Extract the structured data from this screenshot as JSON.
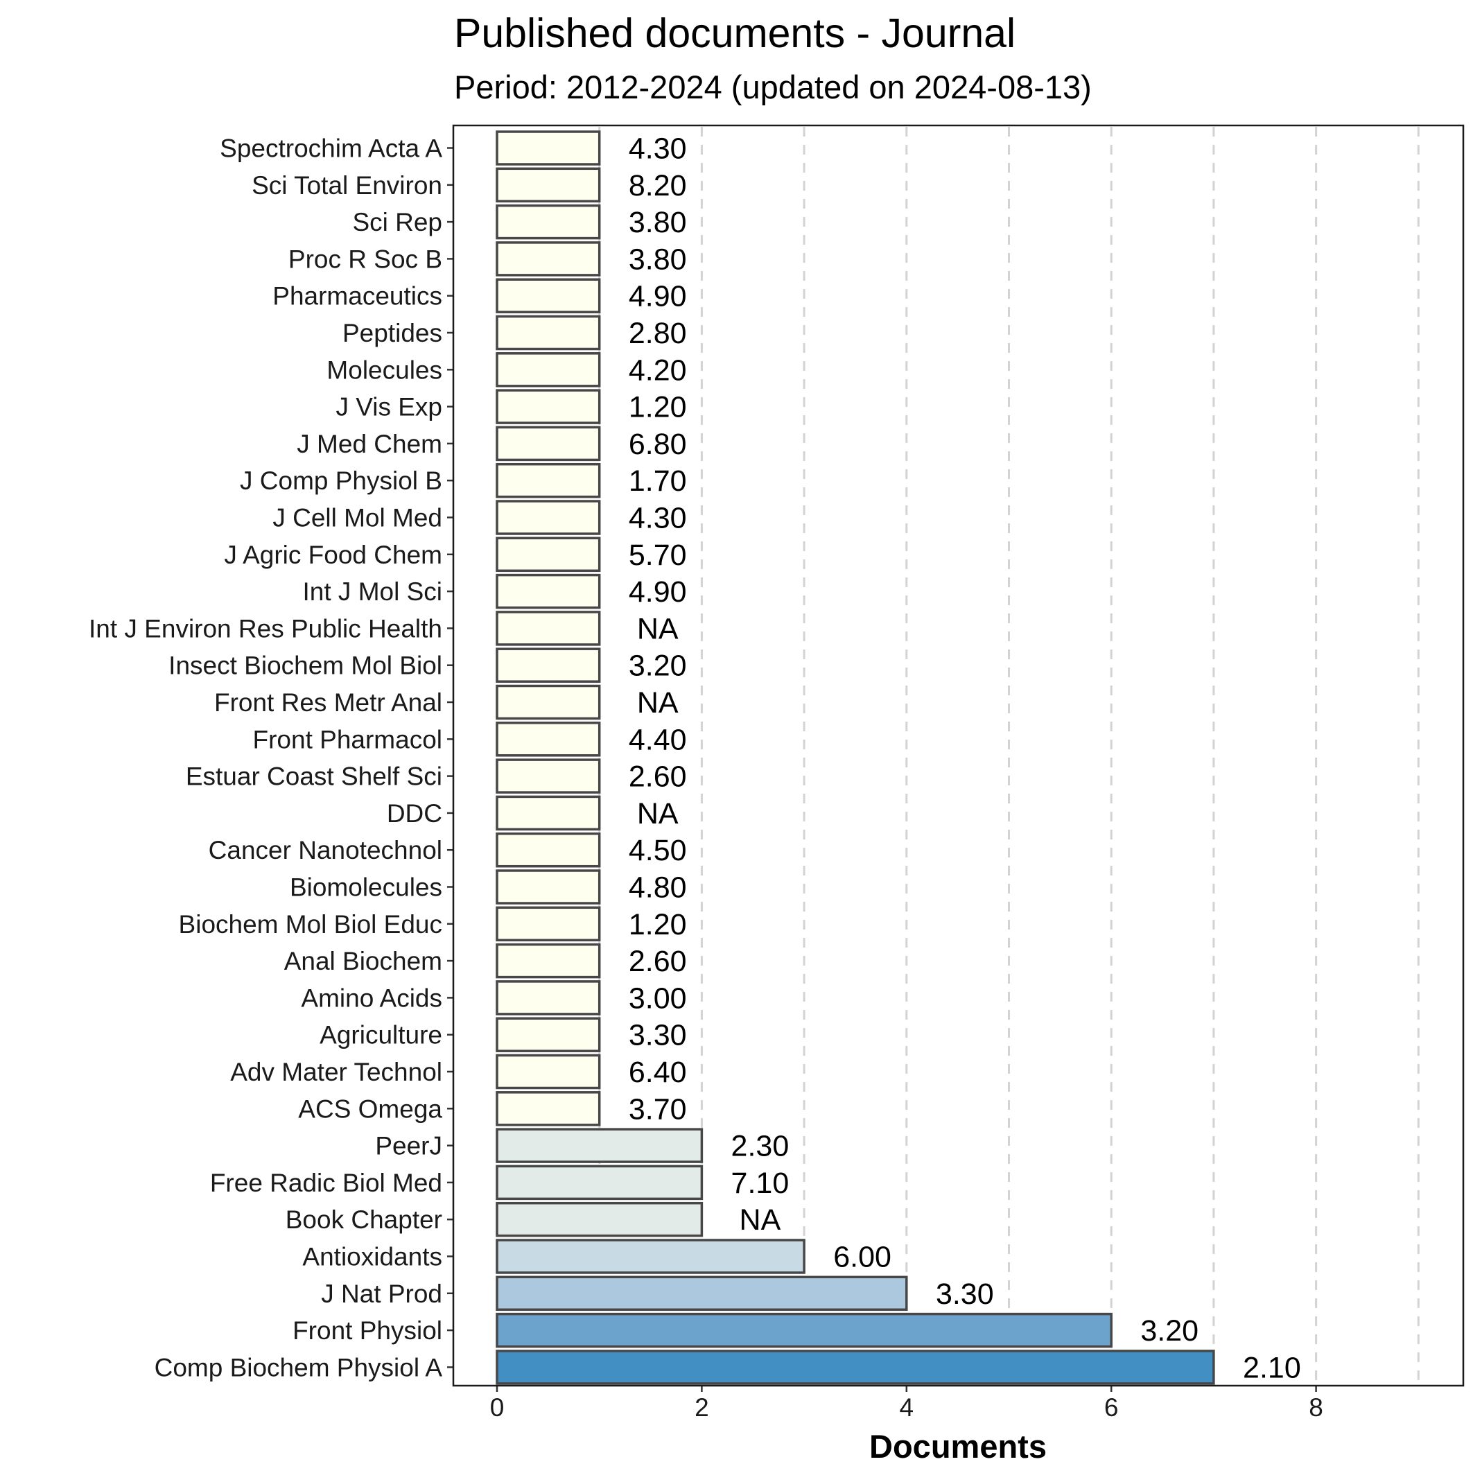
{
  "title": "Published documents - Journal",
  "subtitle": "Period: 2012-2024 (updated on 2024-08-13)",
  "chart_data": {
    "type": "bar",
    "orientation": "horizontal",
    "xlabel": "Documents",
    "ylabel": "",
    "xlim": [
      0,
      9
    ],
    "xticks": [
      0,
      2,
      4,
      6,
      8
    ],
    "grid": "vertical dashed",
    "categories": [
      "Spectrochim Acta A",
      "Sci Total Environ",
      "Sci Rep",
      "Proc R Soc B",
      "Pharmaceutics",
      "Peptides",
      "Molecules",
      "J Vis Exp",
      "J Med Chem",
      "J Comp Physiol B",
      "J Cell Mol Med",
      "J Agric Food Chem",
      "Int J Mol Sci",
      "Int J Environ Res Public Health",
      "Insect Biochem Mol Biol",
      "Front Res Metr Anal",
      "Front Pharmacol",
      "Estuar Coast Shelf Sci",
      "DDC",
      "Cancer Nanotechnol",
      "Biomolecules",
      "Biochem Mol Biol Educ",
      "Anal Biochem",
      "Amino Acids",
      "Agriculture",
      "Adv Mater Technol",
      "ACS Omega",
      "PeerJ",
      "Free Radic Biol Med",
      "Book Chapter",
      "Antioxidants",
      "J Nat Prod",
      "Front Physiol",
      "Comp Biochem Physiol A"
    ],
    "values": [
      1,
      1,
      1,
      1,
      1,
      1,
      1,
      1,
      1,
      1,
      1,
      1,
      1,
      1,
      1,
      1,
      1,
      1,
      1,
      1,
      1,
      1,
      1,
      1,
      1,
      1,
      1,
      2,
      2,
      2,
      3,
      4,
      6,
      7
    ],
    "labels": [
      "4.30",
      "8.20",
      "3.80",
      "3.80",
      "4.90",
      "2.80",
      "4.20",
      "1.20",
      "6.80",
      "1.70",
      "4.30",
      "5.70",
      "4.90",
      "NA",
      "3.20",
      "NA",
      "4.40",
      "2.60",
      "NA",
      "4.50",
      "4.80",
      "1.20",
      "2.60",
      "3.00",
      "3.30",
      "6.40",
      "3.70",
      "2.30",
      "7.10",
      "NA",
      "6.00",
      "3.30",
      "3.20",
      "2.10"
    ],
    "colors": {
      "1": "#FFFFF0",
      "2": "#E2EBE8",
      "3": "#C8DAE4",
      "4": "#ABC8DE",
      "6": "#6CA3CD",
      "7": "#4290C3"
    },
    "bar_stroke": "#474747"
  }
}
